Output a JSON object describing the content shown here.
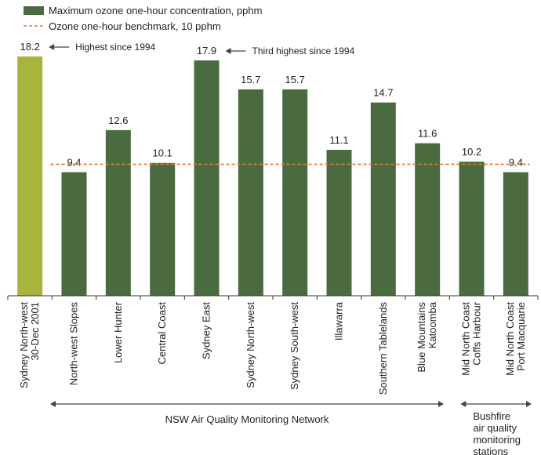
{
  "chart_data": {
    "type": "bar",
    "categories": [
      "Sydney North-west\n30-Dec 2001",
      "North-west Slopes",
      "Lower Hunter",
      "Central Coast",
      "Sydney East",
      "Sydney North-west",
      "Sydney South-west",
      "Illawarra",
      "Southern Tablelands",
      "Blue Mountains\nKatoomba",
      "Mid North Coast\nCoffs Harbour",
      "Mid North Coast\nPort Macquarie"
    ],
    "series": [
      {
        "name": "Maximum ozone one-hour concentration, pphm",
        "values": [
          18.2,
          9.4,
          12.6,
          10.1,
          17.9,
          15.7,
          15.7,
          11.1,
          14.7,
          11.6,
          10.2,
          9.4
        ],
        "value_labels": [
          "18.2",
          "9.4",
          "12.6",
          "10.1",
          "17.9",
          "15.7",
          "15.7",
          "11.1",
          "14.7",
          "11.6",
          "10.2",
          "9.4"
        ]
      }
    ],
    "benchmark": {
      "name": "Ozone one-hour benchmark, 10 pphm",
      "value": 10
    },
    "annotations": [
      {
        "text": "Highest since 1994",
        "category_index": 0
      },
      {
        "text": "Third highest since 1994",
        "category_index": 4
      }
    ],
    "groups": [
      {
        "label": "NSW Air Quality Monitoring Network",
        "from_index": 0,
        "to_index": 9
      },
      {
        "label": "Bushfire\nair quality\nmonitoring\nstations",
        "from_index": 10,
        "to_index": 11
      }
    ],
    "ylim": [
      0,
      18.2
    ],
    "grid": false,
    "legend_position": "top-left",
    "colors": {
      "bar": "#4a6b3f",
      "highlight_bar": "#a9b43c",
      "highlight_index": 0,
      "benchmark": "#e07b39",
      "arrow": "#444444",
      "axis": "#333333"
    }
  }
}
